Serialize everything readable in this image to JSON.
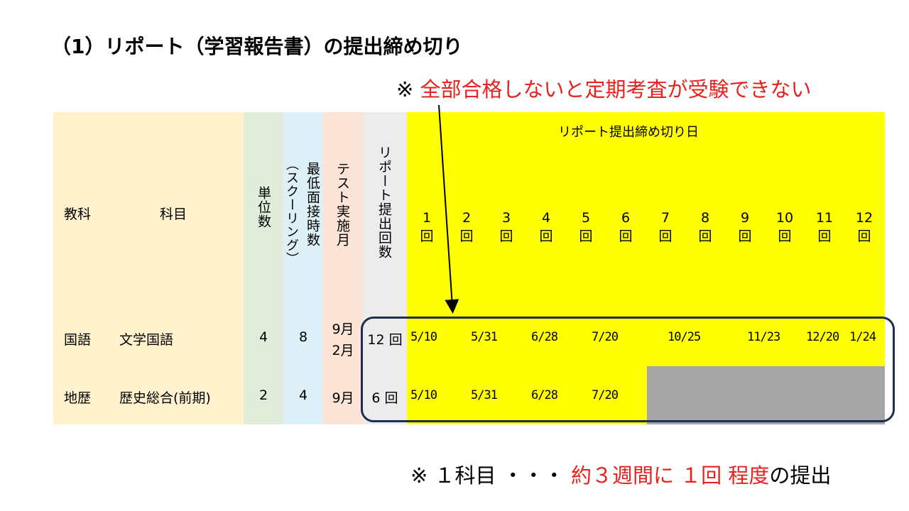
{
  "title": "（1）リポート（学習報告書）の提出締め切り",
  "note_top": {
    "mark": "※",
    "text": "全部合格しないと定期考査が受験できない"
  },
  "headers": {
    "subject_area": "教科",
    "subject": "科目",
    "units": "単位数",
    "hours_line1": "最低面接時数",
    "hours_line2": "（スクーリング）",
    "test_month": "テスト実施月",
    "report_count": "リポート提出回数",
    "deadline_title": "リポート提出締め切り日"
  },
  "rounds": [
    {
      "num": "1",
      "unit": "回"
    },
    {
      "num": "2",
      "unit": "回"
    },
    {
      "num": "3",
      "unit": "回"
    },
    {
      "num": "4",
      "unit": "回"
    },
    {
      "num": "5",
      "unit": "回"
    },
    {
      "num": "6",
      "unit": "回"
    },
    {
      "num": "7",
      "unit": "回"
    },
    {
      "num": "8",
      "unit": "回"
    },
    {
      "num": "9",
      "unit": "回"
    },
    {
      "num": "10",
      "unit": "回"
    },
    {
      "num": "11",
      "unit": "回"
    },
    {
      "num": "12",
      "unit": "回"
    }
  ],
  "rows": [
    {
      "area": "国語",
      "subject": "文学国語",
      "units": "4",
      "hours": "8",
      "test_month_1": "9月",
      "test_month_2": "2月",
      "count": "12 回",
      "dates": [
        "5/10",
        "5/31",
        "6/28",
        "7/20",
        "10/25",
        "11/23",
        "12/20",
        "1/24"
      ]
    },
    {
      "area": "地歴",
      "subject": "歴史総合(前期)",
      "units": "2",
      "hours": "4",
      "test_month_1": "9月",
      "count": "6 回",
      "dates": [
        "5/10",
        "5/31",
        "6/28",
        "7/20"
      ]
    }
  ],
  "note_bottom": {
    "mark": "※",
    "part1": "１科目 ・・・",
    "part2": "約３週間に １回 程度",
    "part3": "の提出"
  }
}
